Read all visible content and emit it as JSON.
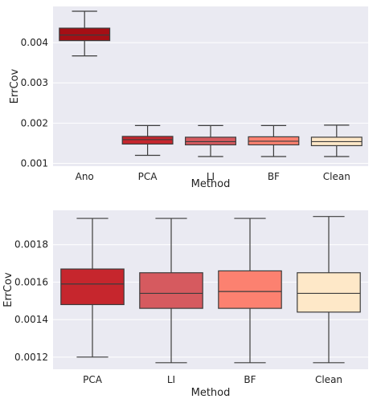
{
  "chart_data": [
    {
      "type": "box",
      "xlabel": "Method",
      "ylabel": "ErrCov",
      "ylim": [
        0.00093,
        0.0049
      ],
      "yticks": [
        0.001,
        0.002,
        0.003,
        0.004
      ],
      "ytick_labels": [
        "0.001",
        "0.002",
        "0.003",
        "0.004"
      ],
      "grid": true,
      "background": "#eaeaf2",
      "categories": [
        "Ano",
        "PCA",
        "LI",
        "BF",
        "Clean"
      ],
      "boxes": [
        {
          "label": "Ano",
          "whisker_low": 0.00367,
          "q1": 0.00405,
          "median": 0.00419,
          "q3": 0.00436,
          "whisker_high": 0.00478,
          "color": "#a50f15"
        },
        {
          "label": "PCA",
          "whisker_low": 0.0012,
          "q1": 0.00148,
          "median": 0.00159,
          "q3": 0.00167,
          "whisker_high": 0.00194,
          "color": "#c6262d"
        },
        {
          "label": "LI",
          "whisker_low": 0.00117,
          "q1": 0.00146,
          "median": 0.00154,
          "q3": 0.00165,
          "whisker_high": 0.00194,
          "color": "#d65a5f"
        },
        {
          "label": "BF",
          "whisker_low": 0.00117,
          "q1": 0.00146,
          "median": 0.00155,
          "q3": 0.00166,
          "whisker_high": 0.00194,
          "color": "#fc8170"
        },
        {
          "label": "Clean",
          "whisker_low": 0.00117,
          "q1": 0.00144,
          "median": 0.00154,
          "q3": 0.00165,
          "whisker_high": 0.00195,
          "color": "#fee8c8"
        }
      ]
    },
    {
      "type": "box",
      "xlabel": "Method",
      "ylabel": "ErrCov",
      "ylim": [
        0.001135,
        0.001983
      ],
      "yticks": [
        0.0012,
        0.0014,
        0.0016,
        0.0018
      ],
      "ytick_labels": [
        "0.0012",
        "0.0014",
        "0.0016",
        "0.0018"
      ],
      "grid": true,
      "background": "#eaeaf2",
      "categories": [
        "PCA",
        "LI",
        "BF",
        "Clean"
      ],
      "boxes": [
        {
          "label": "PCA",
          "whisker_low": 0.0012,
          "q1": 0.00148,
          "median": 0.00159,
          "q3": 0.00167,
          "whisker_high": 0.00194,
          "color": "#c6262d"
        },
        {
          "label": "LI",
          "whisker_low": 0.00117,
          "q1": 0.00146,
          "median": 0.00154,
          "q3": 0.00165,
          "whisker_high": 0.00194,
          "color": "#d65a5f"
        },
        {
          "label": "BF",
          "whisker_low": 0.00117,
          "q1": 0.00146,
          "median": 0.00155,
          "q3": 0.00166,
          "whisker_high": 0.00194,
          "color": "#fc8170"
        },
        {
          "label": "Clean",
          "whisker_low": 0.00117,
          "q1": 0.00144,
          "median": 0.00154,
          "q3": 0.00165,
          "whisker_high": 0.00195,
          "color": "#fee8c8"
        }
      ]
    }
  ]
}
